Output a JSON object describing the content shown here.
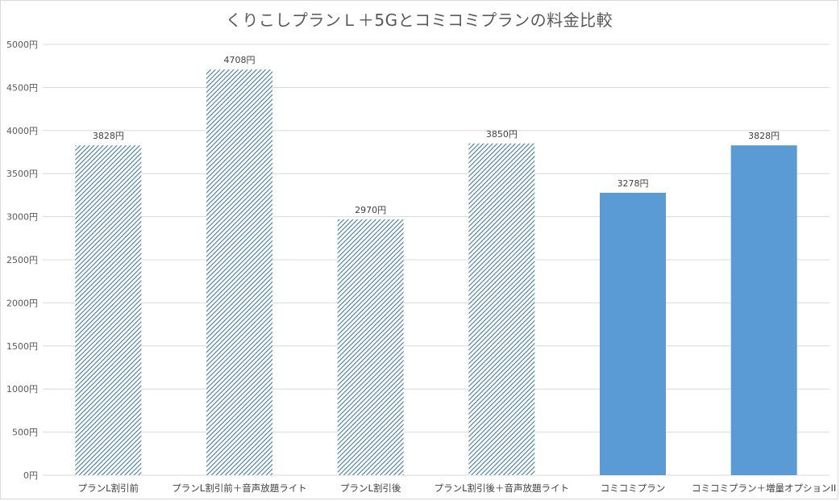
{
  "chart_data": {
    "type": "bar",
    "title": "くりこしプランＬ＋5Gとコミコミプランの料金比較",
    "xlabel": "",
    "ylabel": "",
    "ylim": [
      0,
      5000
    ],
    "y_tick_step": 500,
    "y_tick_suffix": "円",
    "grid": true,
    "legend": "none",
    "categories": [
      "プランL割引前",
      "プランL割引前＋音声放題ライト",
      "プランL割引後",
      "プランL割引後＋音声放題ライト",
      "コミコミプラン",
      "コミコミプラン＋増量オプションII"
    ],
    "values": [
      3828,
      4708,
      2970,
      3850,
      3278,
      3828
    ],
    "data_labels": [
      "3828円",
      "4708円",
      "2970円",
      "3850円",
      "3278円",
      "3828円"
    ],
    "bar_styles": [
      "hatched",
      "hatched",
      "hatched",
      "hatched",
      "solid",
      "solid"
    ],
    "colors": {
      "solid": "#5b9bd5",
      "hatch": "#3e7aa8",
      "grid": "#d9d9d9",
      "axis_text": "#595959"
    }
  }
}
